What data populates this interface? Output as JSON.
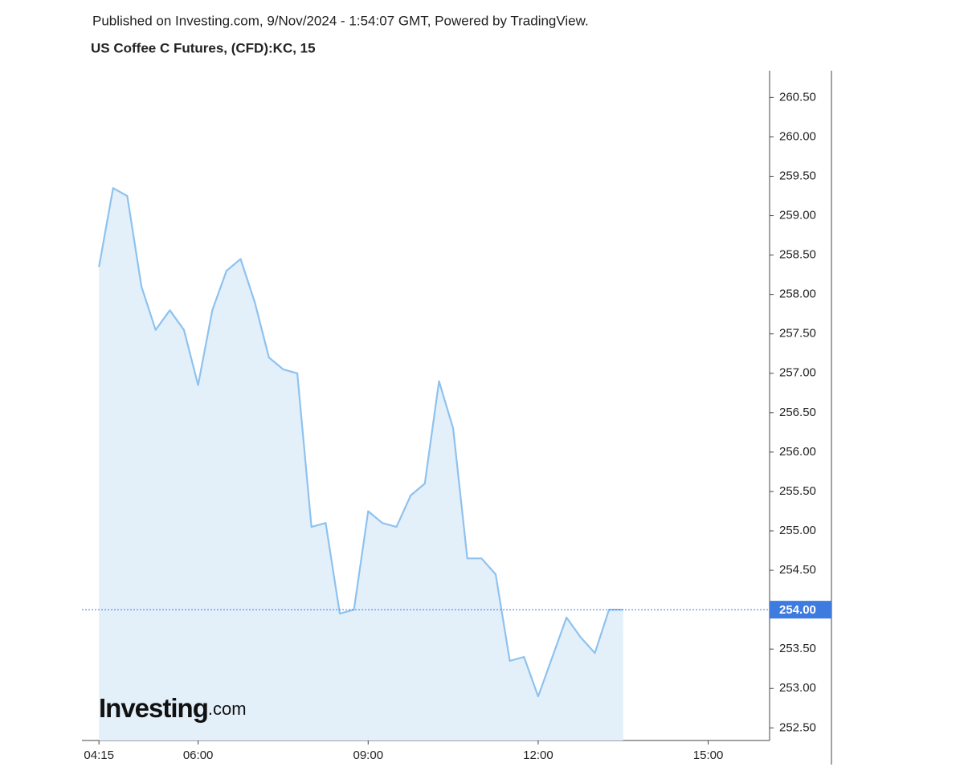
{
  "chart_data": {
    "type": "area",
    "publisher_note": "Published on Investing.com, 9/Nov/2024 - 1:54:07 GMT, Powered by TradingView.",
    "title": "US Coffee C Futures, (CFD):KC, 15",
    "watermark": {
      "brand": "Investing",
      "suffix": ".com"
    },
    "color": "#8ec2ef",
    "fill_color": "#e3f0fa",
    "x": [
      "04:15",
      "04:30",
      "04:45",
      "05:00",
      "05:15",
      "05:30",
      "05:45",
      "06:00",
      "06:15",
      "06:30",
      "06:45",
      "07:00",
      "07:15",
      "07:30",
      "07:45",
      "08:00",
      "08:15",
      "08:30",
      "08:45",
      "09:00",
      "09:15",
      "09:30",
      "09:45",
      "10:00",
      "10:15",
      "10:30",
      "10:45",
      "11:00",
      "11:15",
      "11:30",
      "11:45",
      "12:00",
      "12:15",
      "12:30",
      "12:45",
      "13:00",
      "13:15",
      "13:30"
    ],
    "values": [
      258.35,
      259.35,
      259.25,
      258.1,
      257.55,
      257.8,
      257.55,
      256.85,
      257.8,
      258.3,
      258.45,
      257.9,
      257.2,
      257.05,
      257.0,
      255.05,
      255.1,
      253.95,
      254.0,
      255.25,
      255.1,
      255.05,
      255.45,
      255.6,
      256.9,
      256.3,
      254.65,
      254.65,
      254.45,
      253.35,
      253.4,
      252.9,
      253.4,
      253.9,
      253.65,
      253.45,
      254.0,
      254.0
    ],
    "xlim": [
      "03:57",
      "16:05"
    ],
    "xticks": [
      "04:15",
      "06:00",
      "09:00",
      "12:00",
      "15:00"
    ],
    "ylim": [
      252.34,
      260.84
    ],
    "yticks": [
      {
        "value": 252.5,
        "label": "252.50"
      },
      {
        "value": 253,
        "label": "253.00"
      },
      {
        "value": 253.5,
        "label": "253.50"
      },
      {
        "value": 254.5,
        "label": "254.50"
      },
      {
        "value": 255,
        "label": "255.00"
      },
      {
        "value": 255.5,
        "label": "255.50"
      },
      {
        "value": 256,
        "label": "256.00"
      },
      {
        "value": 256.5,
        "label": "256.50"
      },
      {
        "value": 257,
        "label": "257.00"
      },
      {
        "value": 257.5,
        "label": "257.50"
      },
      {
        "value": 258,
        "label": "258.00"
      },
      {
        "value": 258.5,
        "label": "258.50"
      },
      {
        "value": 259,
        "label": "259.00"
      },
      {
        "value": 259.5,
        "label": "259.50"
      },
      {
        "value": 260,
        "label": "260.00"
      },
      {
        "value": 260.5,
        "label": "260.50"
      }
    ],
    "last_price": {
      "value": 254,
      "label": "254.00",
      "color": "#3d7be0"
    },
    "grid": false
  }
}
